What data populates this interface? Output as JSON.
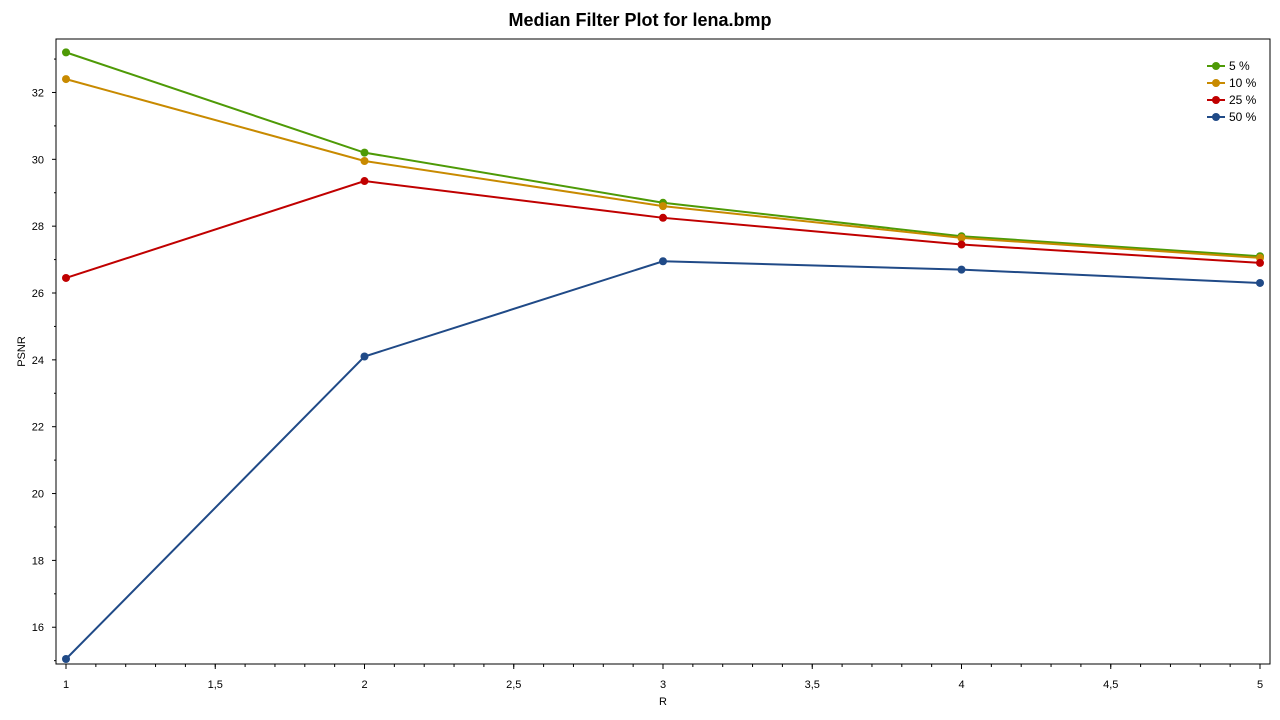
{
  "chart_data": {
    "type": "line",
    "title": "Median Filter Plot for lena.bmp",
    "xlabel": "R",
    "ylabel": "PSNR",
    "x": [
      1,
      2,
      3,
      4,
      5
    ],
    "xlim": [
      1,
      5
    ],
    "ylim": [
      14.9,
      33.6
    ],
    "x_ticks": [
      1,
      1.5,
      2,
      2.5,
      3,
      3.5,
      4,
      4.5,
      5
    ],
    "x_tick_labels": [
      "1",
      "1,5",
      "2",
      "2,5",
      "3",
      "3,5",
      "4",
      "4,5",
      "5"
    ],
    "y_ticks": [
      16,
      18,
      20,
      22,
      24,
      26,
      28,
      30,
      32
    ],
    "y_tick_labels": [
      "16",
      "18",
      "20",
      "22",
      "24",
      "26",
      "28",
      "30",
      "32"
    ],
    "grid": false,
    "legend_position": "top-right",
    "series": [
      {
        "name": "5 %",
        "color": "#4e9a06",
        "values": [
          33.2,
          30.2,
          28.7,
          27.7,
          27.1
        ]
      },
      {
        "name": "10 %",
        "color": "#c88a00",
        "values": [
          32.4,
          29.95,
          28.6,
          27.65,
          27.05
        ]
      },
      {
        "name": "25 %",
        "color": "#c00000",
        "values": [
          26.45,
          29.35,
          28.25,
          27.45,
          26.9
        ]
      },
      {
        "name": "50 %",
        "color": "#204a87",
        "values": [
          15.05,
          24.1,
          26.95,
          26.7,
          26.3
        ]
      }
    ]
  }
}
